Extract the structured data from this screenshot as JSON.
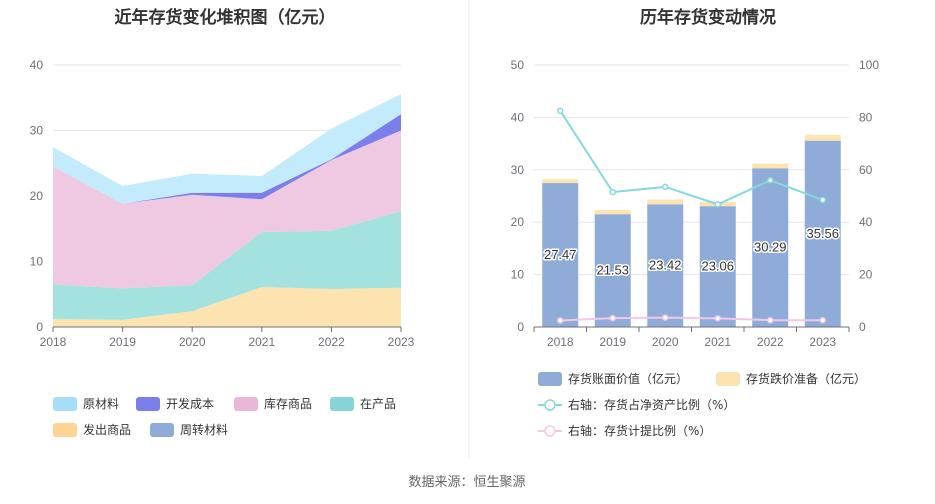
{
  "source": "数据来源：恒生聚源",
  "chart_data": [
    {
      "type": "area",
      "stacked": true,
      "title": "近年存货变化堆积图（亿元）",
      "x": [
        "2018",
        "2019",
        "2020",
        "2021",
        "2022",
        "2023"
      ],
      "ylim": [
        0,
        40
      ],
      "yticks": [
        0,
        10,
        20,
        30,
        40
      ],
      "grid": true,
      "legend_position": "bottom",
      "series": [
        {
          "name": "发出商品",
          "color": "#fde3b0",
          "values": [
            1.2,
            1.1,
            2.4,
            6.1,
            5.8,
            6.0
          ]
        },
        {
          "name": "在产品",
          "color": "#a4e2e0",
          "values": [
            5.3,
            4.8,
            4.0,
            8.4,
            8.9,
            11.7
          ]
        },
        {
          "name": "库存商品",
          "color": "#efc9e2",
          "values": [
            18.0,
            12.9,
            13.8,
            5.0,
            10.8,
            12.3
          ]
        },
        {
          "name": "开发成本",
          "color": "#7b7fec",
          "values": [
            0.0,
            0.0,
            0.3,
            1.0,
            0.1,
            2.5
          ]
        },
        {
          "name": "原材料",
          "color": "#c3ebfb",
          "values": [
            2.97,
            2.73,
            2.92,
            2.56,
            4.69,
            3.06
          ]
        },
        {
          "name": "周转材料",
          "color": "#8facd8",
          "values": [
            0,
            0,
            0,
            0,
            0,
            0
          ]
        }
      ],
      "legend": [
        {
          "name": "原材料",
          "color": "#a6def8"
        },
        {
          "name": "开发成本",
          "color": "#7b7fec"
        },
        {
          "name": "库存商品",
          "color": "#eab7d9"
        },
        {
          "name": "在产品",
          "color": "#86d4d8"
        },
        {
          "name": "发出商品",
          "color": "#fdd494"
        },
        {
          "name": "周转材料",
          "color": "#8facd8"
        }
      ]
    },
    {
      "type": "bar",
      "title": "历年存货变动情况",
      "categories": [
        "2018",
        "2019",
        "2020",
        "2021",
        "2022",
        "2023"
      ],
      "ylim": [
        0,
        50
      ],
      "yticks": [
        0,
        10,
        20,
        30,
        40,
        50
      ],
      "y2lim": [
        0,
        100
      ],
      "y2ticks": [
        0,
        20,
        40,
        60,
        80,
        100
      ],
      "grid": true,
      "legend_position": "bottom",
      "series": [
        {
          "name": "存货账面价值（亿元）",
          "axis": "left",
          "kind": "bar",
          "color": "#8facd8",
          "values": [
            27.47,
            21.53,
            23.42,
            23.06,
            30.29,
            35.56
          ],
          "labels": [
            "27.47",
            "21.53",
            "23.42",
            "23.06",
            "30.29",
            "35.56"
          ]
        },
        {
          "name": "存货跌价准备（亿元）",
          "axis": "left",
          "kind": "bar_stack",
          "color": "#fde3b0",
          "values": [
            0.7,
            0.8,
            0.9,
            0.8,
            0.9,
            1.1
          ]
        },
        {
          "name": "右轴：存货占净资产比例（%）",
          "axis": "right",
          "kind": "line",
          "color": "#85d9dc",
          "values": [
            82.5,
            51.5,
            53.5,
            46.8,
            56.0,
            48.5
          ]
        },
        {
          "name": "右轴：存货计提比例（%）",
          "axis": "right",
          "kind": "line",
          "color": "#f3c8e7",
          "values": [
            2.5,
            3.4,
            3.6,
            3.3,
            2.6,
            2.6
          ]
        }
      ]
    }
  ]
}
